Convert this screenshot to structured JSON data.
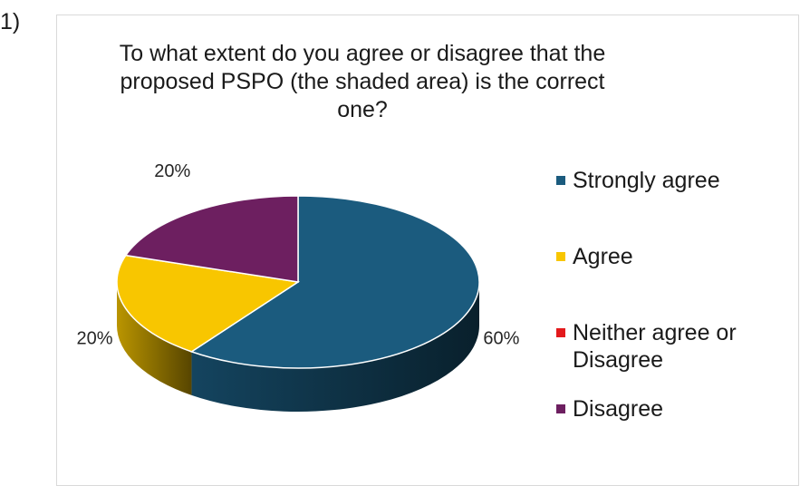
{
  "question_number": "1)",
  "chart_data": {
    "type": "pie",
    "style": "3d",
    "title": "To what extent do you agree or disagree that the proposed PSPO (the shaded area) is the correct one?",
    "categories": [
      "Strongly agree",
      "Agree",
      "Neither agree or Disagree",
      "Disagree"
    ],
    "values": [
      60,
      20,
      0,
      20
    ],
    "labels": [
      "60%",
      "20%",
      "",
      "20%"
    ],
    "colors": [
      "#1b5b7e",
      "#f8c600",
      "#e31a1c",
      "#6d1f60"
    ],
    "legend_position": "right"
  }
}
